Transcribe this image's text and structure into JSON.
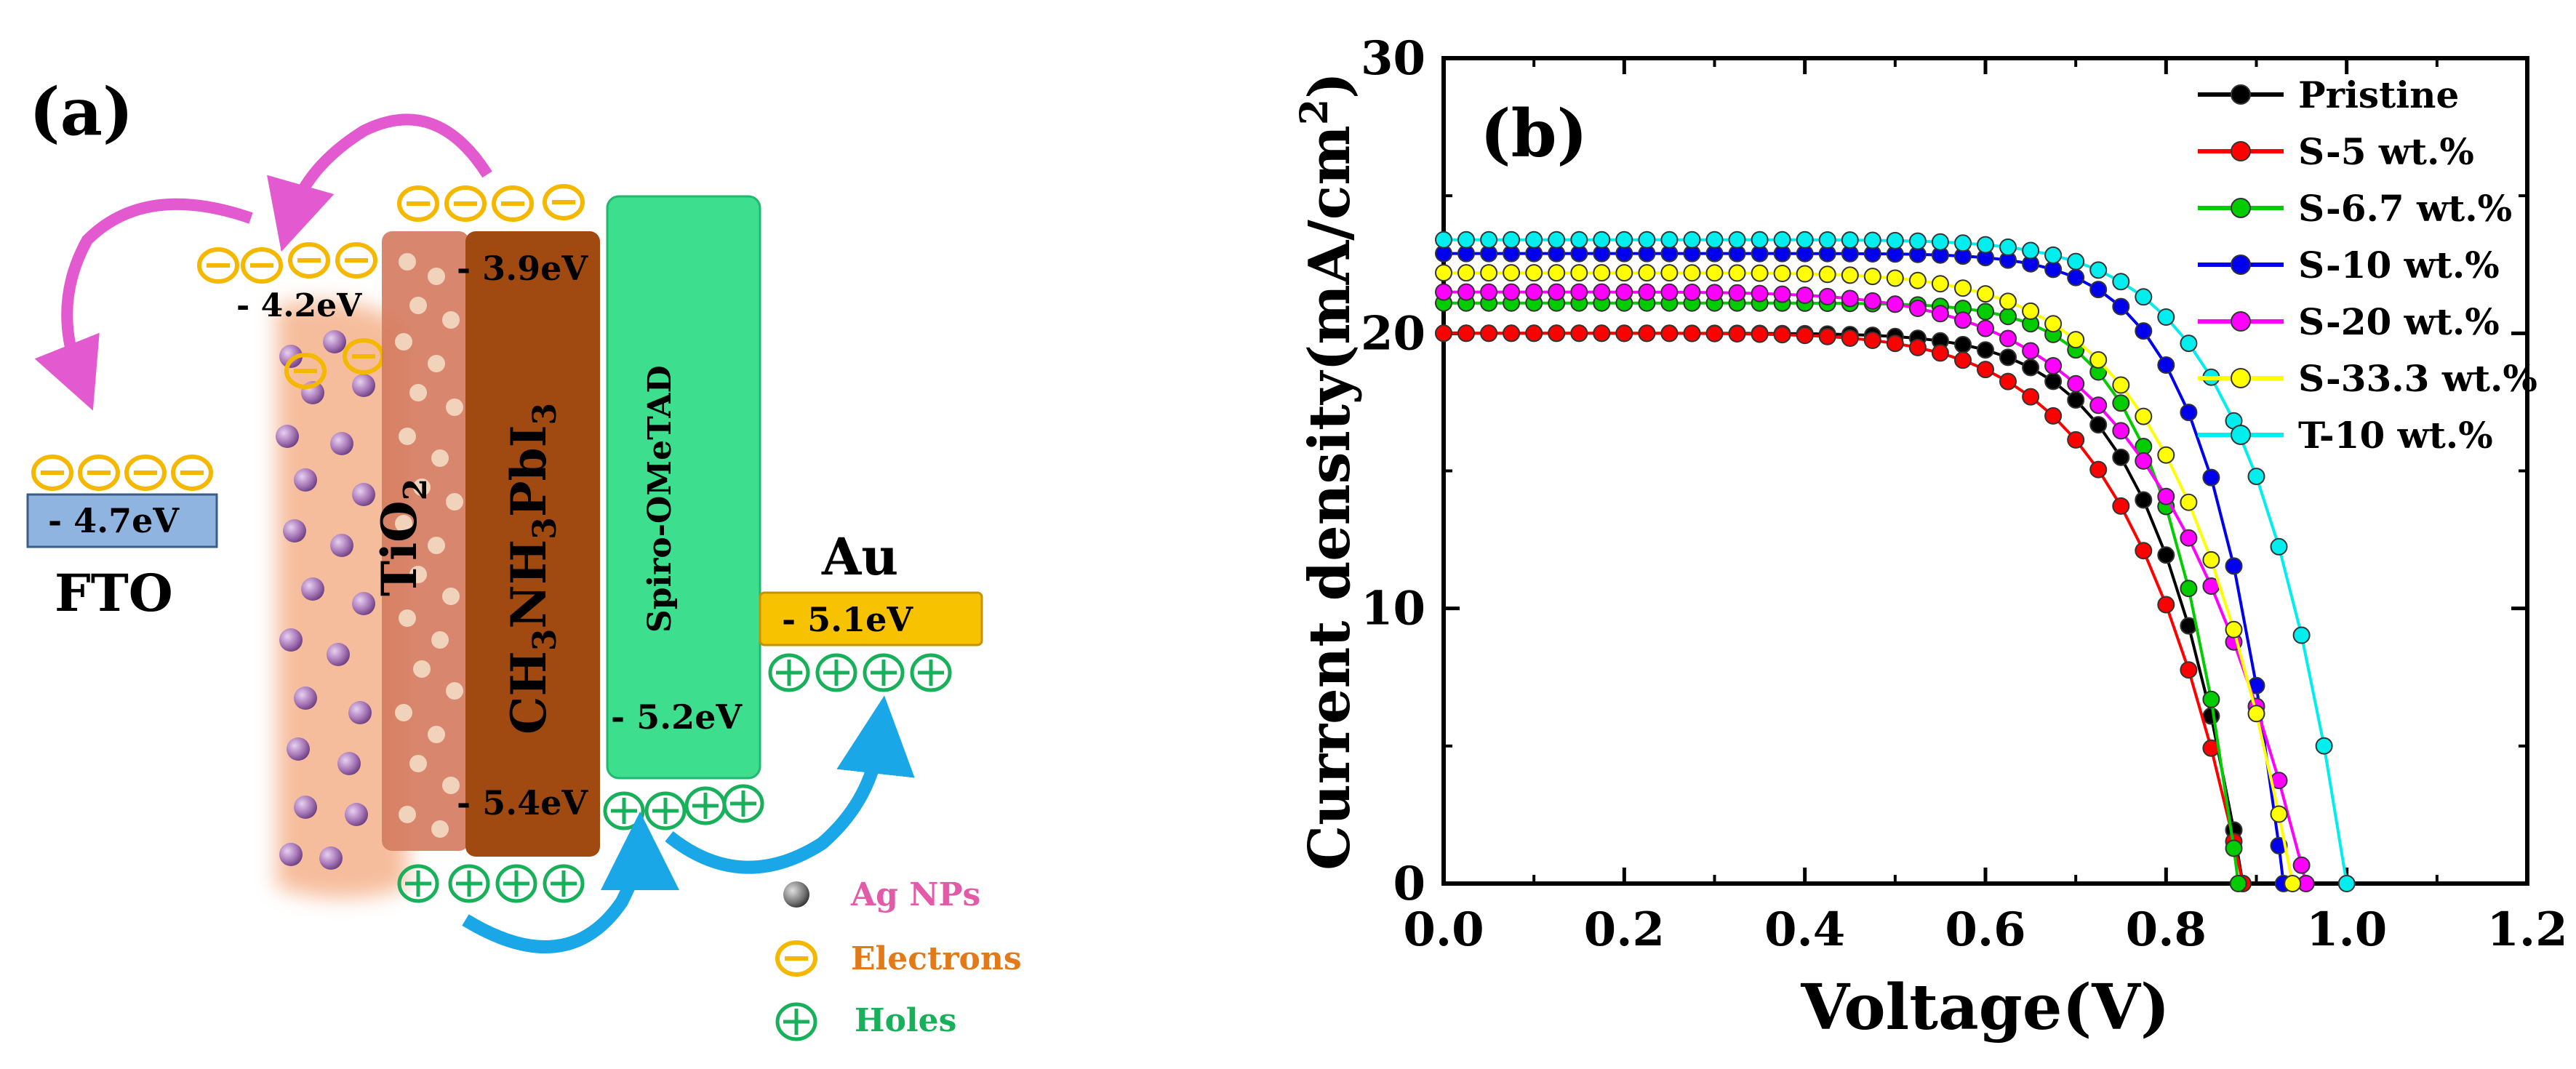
{
  "panel_a": {
    "label": "(a)",
    "fto": {
      "label": "FTO",
      "level": "- 4.7eV"
    },
    "tio2": {
      "label_main": "TiO",
      "label_sub": "2",
      "level": "- 4.2eV"
    },
    "perovskite": {
      "label_parts": [
        "CH",
        "3",
        "NH",
        "3",
        "PbI",
        "3"
      ],
      "cb": "- 3.9eV",
      "vb": "- 5.4eV"
    },
    "spiro": {
      "label": "Spiro-OMeTAD",
      "level": "- 5.2eV"
    },
    "au": {
      "label": "Au",
      "level": "- 5.1eV"
    },
    "legend": {
      "ag": "Ag NPs",
      "electrons": "Electrons",
      "holes": "Holes"
    },
    "colors": {
      "electron": "#f5b800",
      "hole": "#18b05a",
      "arrow_pink": "#e35ad0",
      "arrow_blue": "#1aa7e8",
      "fto": "#8fb4e0",
      "au": "#f7c200",
      "spiro": "#3dde8e",
      "perovskite": "#a04a12",
      "tio2": "#d47a5e",
      "legend_ag": "#e25aa8",
      "legend_electrons": "#e27a1a",
      "legend_holes": "#18b05a"
    }
  },
  "chart_data": {
    "type": "line",
    "panel_label": "(b)",
    "xlabel": "Voltage(V)",
    "ylabel": "Current density(mA/cm",
    "ylabel_sup": "2",
    "ylabel_close": ")",
    "xlim": [
      0.0,
      1.2
    ],
    "ylim": [
      0,
      30
    ],
    "xticks": [
      "0.0",
      "0.2",
      "0.4",
      "0.6",
      "0.8",
      "1.0",
      "1.2"
    ],
    "yticks": [
      "0",
      "10",
      "20",
      "30"
    ],
    "xtick_values": [
      0.0,
      0.2,
      0.4,
      0.6,
      0.8,
      1.0,
      1.2
    ],
    "ytick_values": [
      0,
      10,
      20,
      30
    ],
    "legend_position": "top-right",
    "series": [
      {
        "name": "Pristine",
        "color": "#000000",
        "jsc": 20.0,
        "voc": 0.885,
        "n": 9.0
      },
      {
        "name": "S-5 wt.%",
        "color": "#ff0000",
        "jsc": 20.0,
        "voc": 0.885,
        "n": 7.0
      },
      {
        "name": "S-6.7 wt.%",
        "color": "#00cc00",
        "jsc": 21.1,
        "voc": 0.88,
        "n": 11.0
      },
      {
        "name": "S-10 wt.%",
        "color": "#0000ee",
        "jsc": 22.9,
        "voc": 0.93,
        "n": 11.5
      },
      {
        "name": "S-20 wt.%",
        "color": "#ff00ff",
        "jsc": 21.5,
        "voc": 0.955,
        "n": 6.0
      },
      {
        "name": "S-33.3 wt.%",
        "color": "#ffff00",
        "jsc": 22.2,
        "voc": 0.94,
        "n": 7.5
      },
      {
        "name": "T-10 wt.%",
        "color": "#00eeee",
        "jsc": 23.4,
        "voc": 1.0,
        "n": 9.5
      }
    ]
  }
}
